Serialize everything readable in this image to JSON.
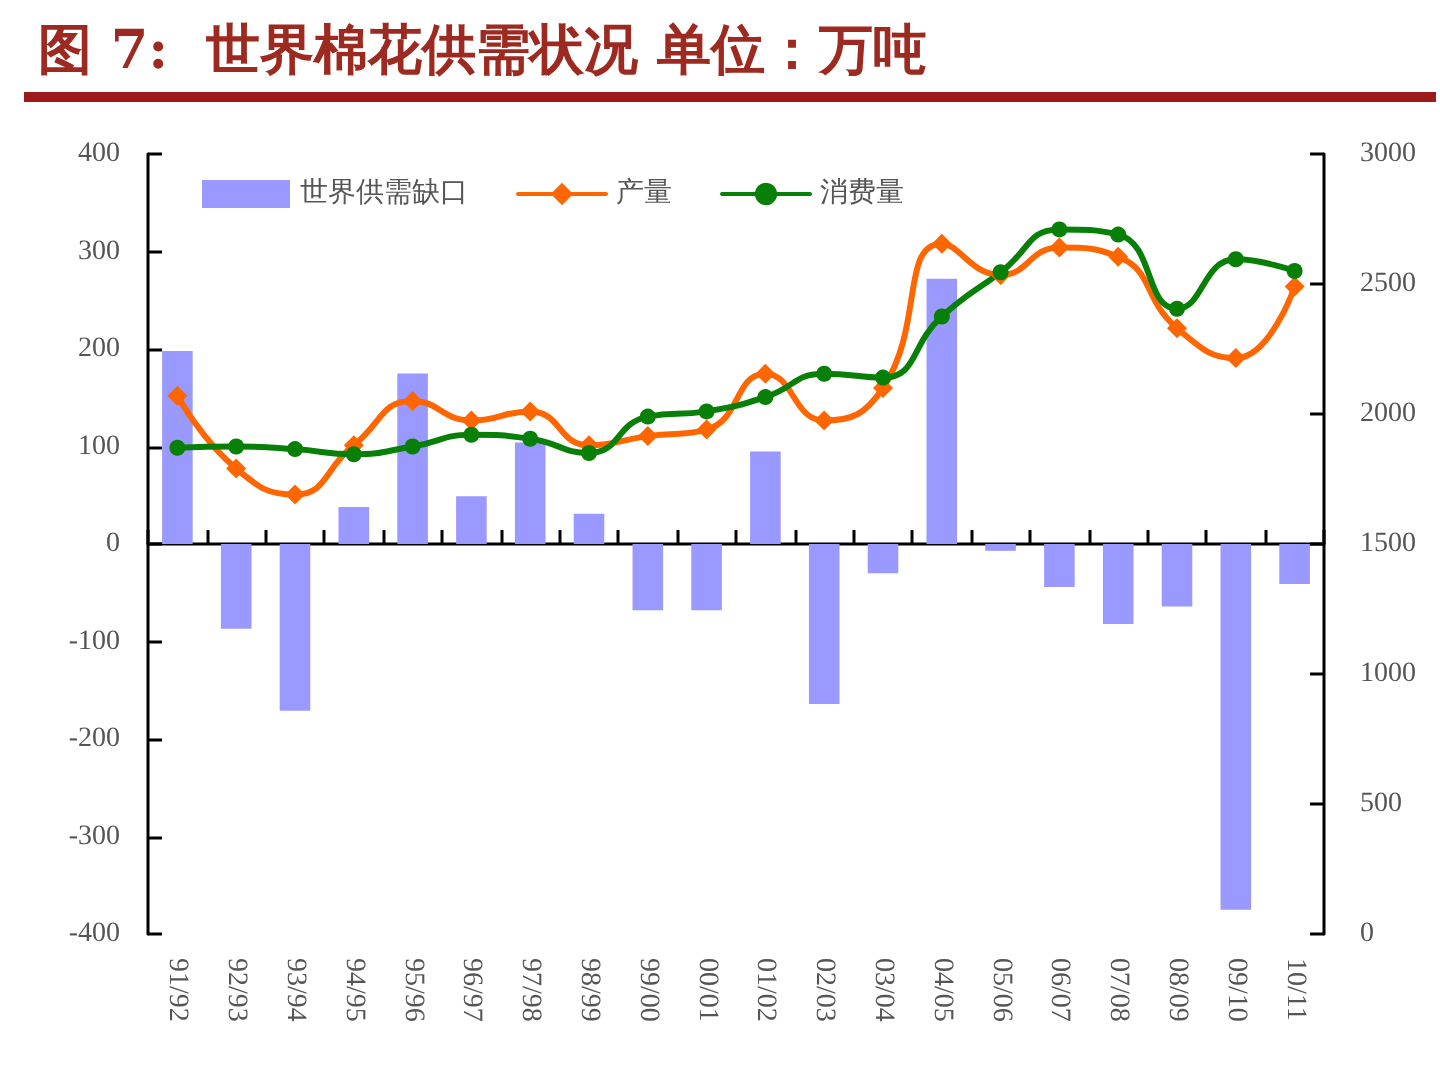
{
  "chart_data": {
    "type": "bar",
    "title": "图 7:  世界棉花供需状况 单位：万吨",
    "categories": [
      "91/92",
      "92/93",
      "93/94",
      "94/95",
      "95/96",
      "96/97",
      "97/98",
      "98/99",
      "99/00",
      "00/01",
      "01/02",
      "02/03",
      "03/04",
      "04/05",
      "05/06",
      "06/07",
      "07/08",
      "08/09",
      "09/10",
      "10/11"
    ],
    "series": [
      {
        "name": "世界供需缺口",
        "color": "#9999ff",
        "values": [
          198,
          -87,
          -171,
          38,
          175,
          49,
          104,
          31,
          -68,
          -68,
          95,
          -164,
          -30,
          272,
          -7,
          -44,
          -82,
          -64,
          -375,
          -41
        ]
      },
      {
        "name": "产量",
        "type": "line",
        "axis": "y2",
        "color": "#ff6600",
        "marker": "diamond",
        "values": [
          2070,
          1790,
          1690,
          1880,
          2050,
          1975,
          2010,
          1880,
          1915,
          1940,
          2155,
          1975,
          2100,
          2655,
          2535,
          2640,
          2605,
          2330,
          2215,
          2490
        ]
      },
      {
        "name": "消费量",
        "type": "line",
        "axis": "y2",
        "color": "#088008",
        "marker": "circle",
        "values": [
          1870,
          1875,
          1865,
          1845,
          1875,
          1920,
          1905,
          1850,
          1990,
          2010,
          2065,
          2155,
          2140,
          2375,
          2545,
          2710,
          2690,
          2405,
          2595,
          2550
        ]
      }
    ],
    "ylim": [
      -400,
      400
    ],
    "yticks": [
      -400,
      -300,
      -200,
      -100,
      0,
      100,
      200,
      300,
      400
    ],
    "y2lim": [
      0,
      3000
    ],
    "y2ticks": [
      0,
      500,
      1000,
      1500,
      2000,
      2500,
      3000
    ],
    "legend": "top left"
  }
}
